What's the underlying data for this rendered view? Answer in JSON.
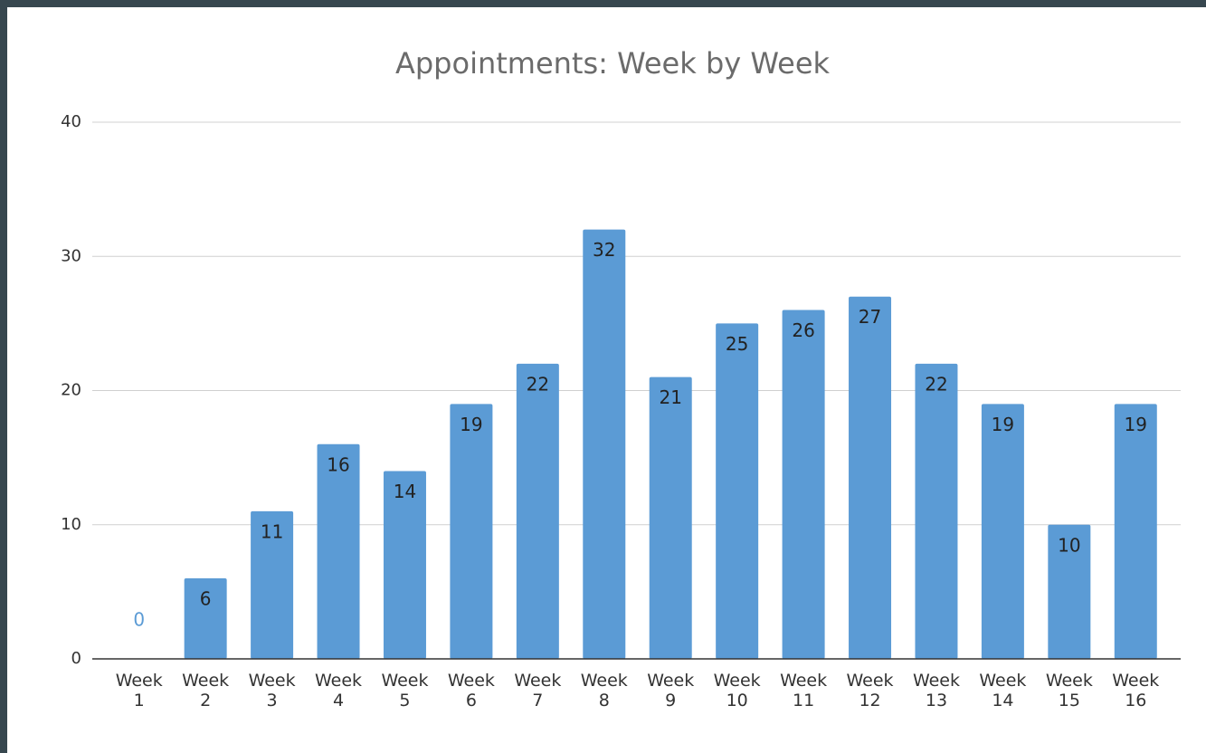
{
  "chart_data": {
    "type": "bar",
    "title": "Appointments: Week by Week",
    "categories": [
      "Week 1",
      "Week 2",
      "Week 3",
      "Week 4",
      "Week 5",
      "Week 6",
      "Week 7",
      "Week 8",
      "Week 9",
      "Week 10",
      "Week 11",
      "Week 12",
      "Week 13",
      "Week 14",
      "Week 15",
      "Week 16"
    ],
    "values": [
      0,
      6,
      11,
      16,
      14,
      19,
      22,
      32,
      21,
      25,
      26,
      27,
      22,
      19,
      10,
      19
    ],
    "color": "#5b9bd5",
    "ylim": [
      0,
      40
    ],
    "yticks": [
      0,
      10,
      20,
      30,
      40
    ],
    "grid": true
  }
}
